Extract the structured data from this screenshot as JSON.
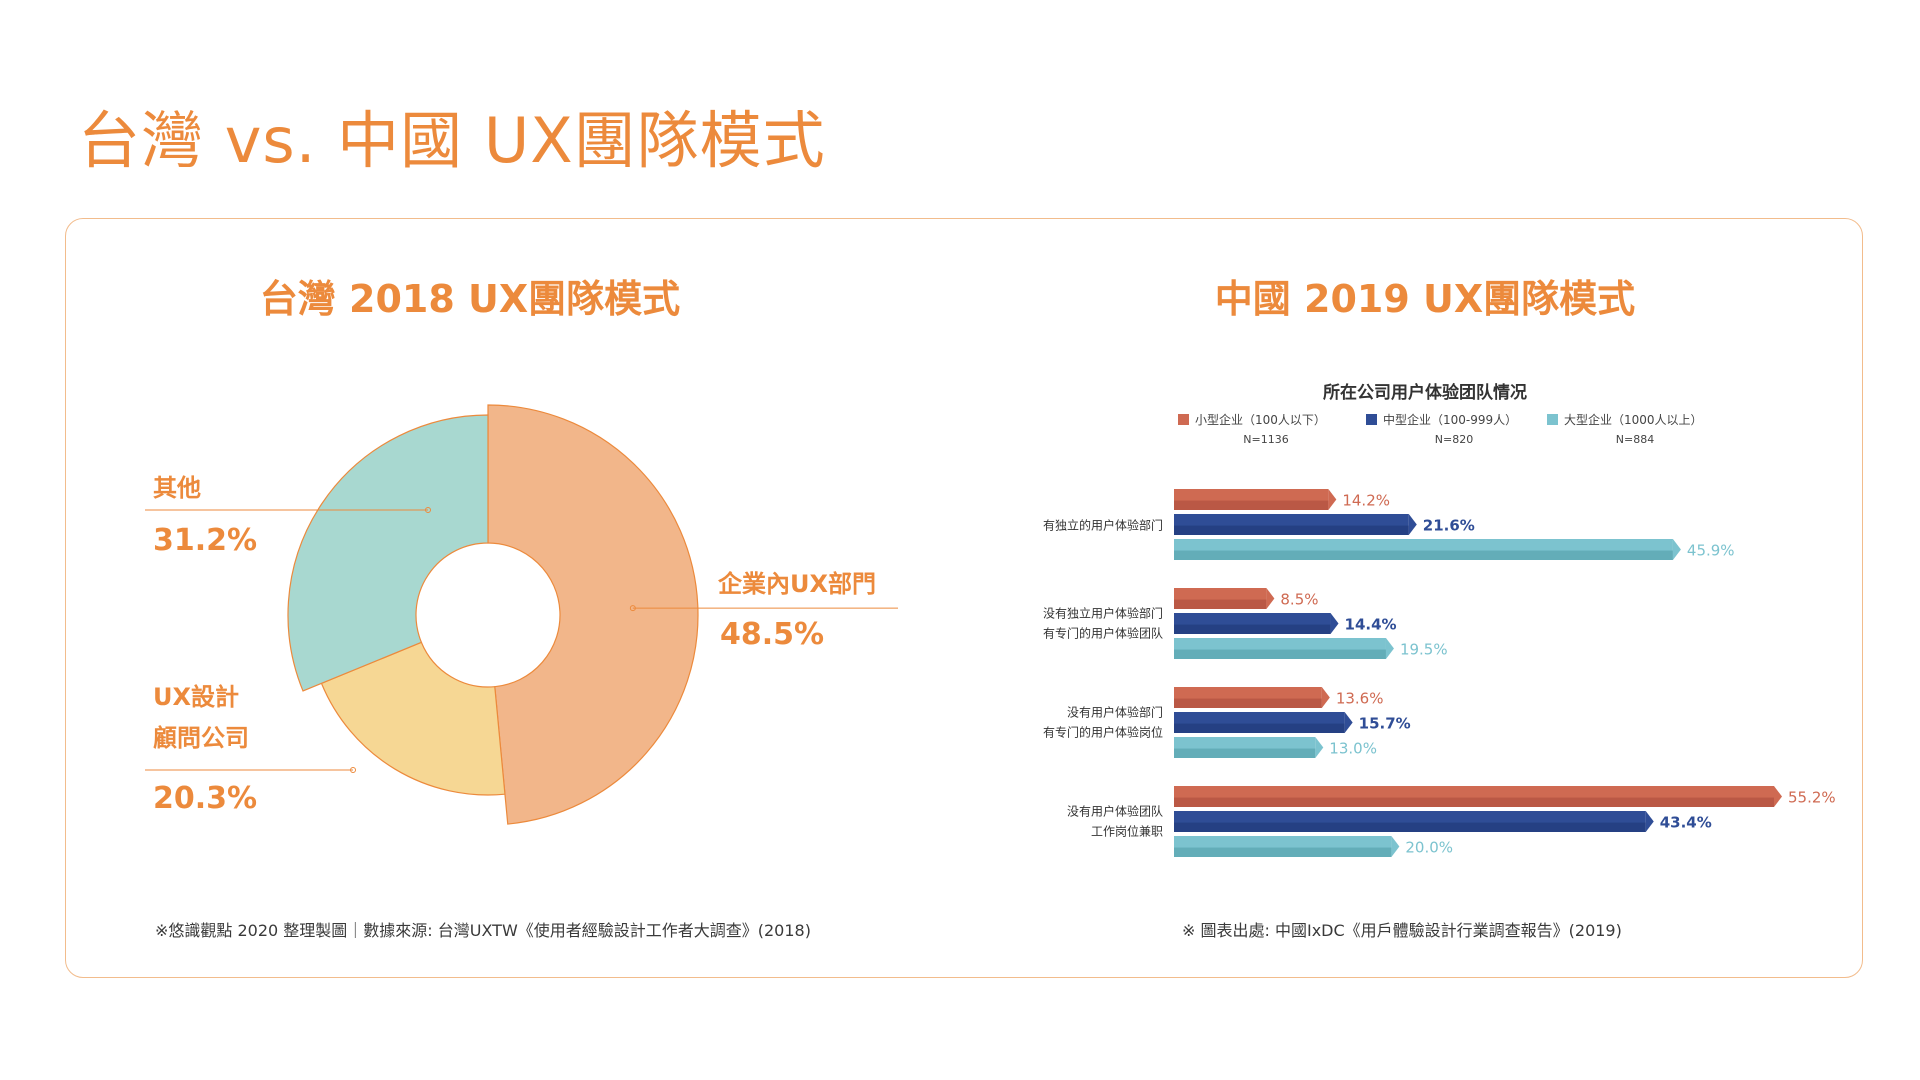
{
  "page": {
    "title": "台灣 vs. 中國 UX團隊模式"
  },
  "colors": {
    "accent": "#ec8a3c",
    "panel_border": "#f2bc8c",
    "donut": [
      "#f2b68a",
      "#f6d794",
      "#a8d8d0"
    ],
    "donut_stroke": "#ec8a3c",
    "bar_small": "#cf6a52",
    "bar_medium": "#2f4d96",
    "bar_large": "#7cc3cf"
  },
  "chart_data": [
    {
      "type": "pie",
      "variant": "donut",
      "title": "台灣 2018 UX團隊模式",
      "slices": [
        {
          "label": "企業內UX部門",
          "value": 48.5,
          "value_label": "48.5%"
        },
        {
          "label_lines": [
            "UX設計",
            "顧問公司"
          ],
          "value": 20.3,
          "value_label": "20.3%"
        },
        {
          "label": "其他",
          "value": 31.2,
          "value_label": "31.2%"
        }
      ],
      "source": "※悠識觀點 2020 整理製圖｜數據來源: 台灣UXTW《使用者經驗設計工作者大調查》(2018)"
    },
    {
      "type": "bar",
      "orientation": "horizontal",
      "title": "中國 2019 UX團隊模式",
      "subtitle": "所在公司用户体验团队情况",
      "legend": [
        {
          "name": "小型企业（100人以下）",
          "n": "N=1136"
        },
        {
          "name": "中型企业（100-999人）",
          "n": "N=820"
        },
        {
          "name": "大型企业（1000人以上）",
          "n": "N=884"
        }
      ],
      "categories": [
        {
          "lines": [
            "有独立的用户体验部门"
          ]
        },
        {
          "lines": [
            "没有独立用户体验部门",
            "有专门的用户体验团队"
          ]
        },
        {
          "lines": [
            "没有用户体验部门",
            "有专门的用户体验岗位"
          ]
        },
        {
          "lines": [
            "没有用户体验团队",
            "工作岗位兼职"
          ]
        }
      ],
      "series": [
        {
          "name": "小型企业（100人以下）",
          "values": [
            14.2,
            8.5,
            13.6,
            55.2
          ],
          "labels": [
            "14.2%",
            "8.5%",
            "13.6%",
            "55.2%"
          ]
        },
        {
          "name": "中型企业（100-999人）",
          "values": [
            21.6,
            14.4,
            15.7,
            43.4
          ],
          "labels": [
            "21.6%",
            "14.4%",
            "15.7%",
            "43.4%"
          ]
        },
        {
          "name": "大型企业（1000人以上）",
          "values": [
            45.9,
            19.5,
            13.0,
            20.0
          ],
          "labels": [
            "45.9%",
            "19.5%",
            "13.0%",
            "20.0%"
          ]
        }
      ],
      "xlim": [
        0,
        60
      ],
      "source": "※ 圖表出處: 中國IxDC《用戶體驗設計行業調查報告》(2019)"
    }
  ]
}
